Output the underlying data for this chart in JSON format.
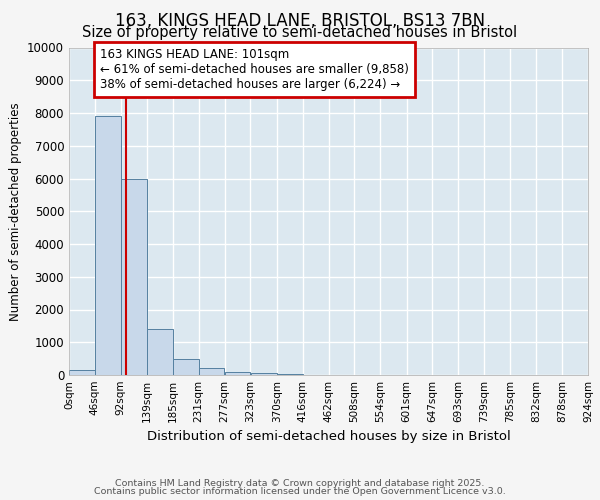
{
  "title1": "163, KINGS HEAD LANE, BRISTOL, BS13 7BN",
  "title2": "Size of property relative to semi-detached houses in Bristol",
  "xlabel": "Distribution of semi-detached houses by size in Bristol",
  "ylabel": "Number of semi-detached properties",
  "bin_edges": [
    0,
    46,
    92,
    139,
    185,
    231,
    277,
    323,
    370,
    416,
    462,
    508,
    554,
    601,
    647,
    693,
    739,
    785,
    832,
    878,
    924
  ],
  "bar_heights": [
    150,
    7900,
    6000,
    1400,
    500,
    200,
    100,
    75,
    20,
    0,
    0,
    0,
    0,
    0,
    0,
    0,
    0,
    0,
    0,
    0
  ],
  "bar_color": "#c8d8ea",
  "bar_edge_color": "#5580a0",
  "property_size": 101,
  "red_line_color": "#cc0000",
  "annotation_line1": "163 KINGS HEAD LANE: 101sqm",
  "annotation_line2": "← 61% of semi-detached houses are smaller (9,858)",
  "annotation_line3": "38% of semi-detached houses are larger (6,224) →",
  "annotation_box_color": "#cc0000",
  "ylim": [
    0,
    10000
  ],
  "yticks": [
    0,
    1000,
    2000,
    3000,
    4000,
    5000,
    6000,
    7000,
    8000,
    9000,
    10000
  ],
  "footer1": "Contains HM Land Registry data © Crown copyright and database right 2025.",
  "footer2": "Contains public sector information licensed under the Open Government Licence v3.0.",
  "fig_bg_color": "#f5f5f5",
  "plot_bg_color": "#dce8f0",
  "title1_fontsize": 12,
  "title2_fontsize": 10.5,
  "grid_color": "#ffffff",
  "grid_linewidth": 1.0
}
